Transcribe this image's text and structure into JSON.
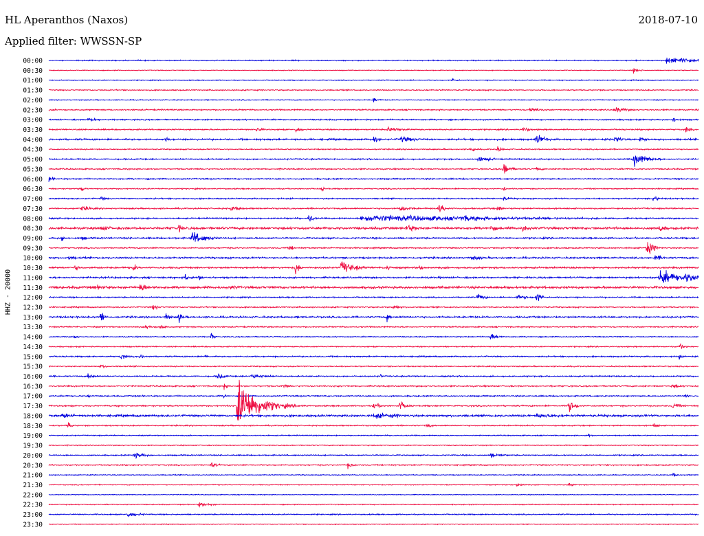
{
  "header": {
    "station": "HL Aperanthos (Naxos)",
    "date": "2018-07-10",
    "filter": "Applied filter: WWSSN-SP"
  },
  "chart_data": {
    "type": "line",
    "title": "HL Aperanthos (Naxos)",
    "subtitle": "Applied filter: WWSSN-SP",
    "ylabel": "HHZ - 20000",
    "xlabel": "",
    "grid": false,
    "colors": {
      "even": "#0000dd",
      "odd": "#ee1144"
    },
    "categories": [
      "00:00",
      "00:30",
      "01:00",
      "01:30",
      "02:00",
      "02:30",
      "03:00",
      "03:30",
      "04:00",
      "04:30",
      "05:00",
      "05:30",
      "06:00",
      "06:30",
      "07:00",
      "07:30",
      "08:00",
      "08:30",
      "09:00",
      "09:30",
      "10:00",
      "10:30",
      "11:00",
      "11:30",
      "12:00",
      "12:30",
      "13:00",
      "13:30",
      "14:00",
      "14:30",
      "15:00",
      "15:30",
      "16:00",
      "16:30",
      "17:00",
      "17:30",
      "18:00",
      "18:30",
      "19:00",
      "19:30",
      "20:00",
      "20:30",
      "21:00",
      "21:30",
      "22:00",
      "22:30",
      "23:00",
      "23:30"
    ],
    "series": [
      {
        "label": "00:00",
        "noise": 0.8,
        "events": [
          [
            0.95,
            3,
            0.08
          ]
        ]
      },
      {
        "label": "00:30",
        "noise": 0.6,
        "events": [
          [
            0.9,
            2.5,
            0.01
          ]
        ]
      },
      {
        "label": "01:00",
        "noise": 0.7,
        "events": [
          [
            0.62,
            2,
            0.01
          ]
        ]
      },
      {
        "label": "01:30",
        "noise": 0.9,
        "events": []
      },
      {
        "label": "02:00",
        "noise": 0.7,
        "events": [
          [
            0.5,
            3,
            0.006
          ]
        ]
      },
      {
        "label": "02:30",
        "noise": 1.0,
        "events": [
          [
            0.74,
            2.5,
            0.02
          ],
          [
            0.87,
            3,
            0.02
          ]
        ]
      },
      {
        "label": "03:00",
        "noise": 1.0,
        "events": [
          [
            0.06,
            2,
            0.02
          ],
          [
            0.96,
            3,
            0.01
          ]
        ]
      },
      {
        "label": "03:30",
        "noise": 1.0,
        "events": [
          [
            0.32,
            3,
            0.008
          ],
          [
            0.38,
            3,
            0.01
          ],
          [
            0.52,
            2.5,
            0.03
          ],
          [
            0.73,
            3,
            0.01
          ],
          [
            0.98,
            3,
            0.008
          ]
        ]
      },
      {
        "label": "04:00",
        "noise": 1.3,
        "events": [
          [
            0.18,
            2.5,
            0.008
          ],
          [
            0.5,
            4,
            0.008
          ],
          [
            0.54,
            3,
            0.03
          ],
          [
            0.75,
            6,
            0.012
          ],
          [
            0.87,
            4,
            0.012
          ],
          [
            0.91,
            3,
            0.01
          ]
        ]
      },
      {
        "label": "04:30",
        "noise": 0.9,
        "events": [
          [
            0.65,
            6,
            0.004
          ],
          [
            0.69,
            3,
            0.01
          ]
        ]
      },
      {
        "label": "05:00",
        "noise": 1.0,
        "events": [
          [
            0.66,
            3,
            0.02
          ],
          [
            0.9,
            7,
            0.02
          ]
        ]
      },
      {
        "label": "05:30",
        "noise": 1.0,
        "events": [
          [
            0.7,
            7,
            0.01
          ],
          [
            0.75,
            2.5,
            0.01
          ]
        ]
      },
      {
        "label": "06:00",
        "noise": 1.0,
        "events": [
          [
            0.0,
            3,
            0.008
          ]
        ]
      },
      {
        "label": "06:30",
        "noise": 0.9,
        "events": [
          [
            0.05,
            4,
            0.004
          ],
          [
            0.42,
            3,
            0.004
          ],
          [
            0.7,
            3,
            0.004
          ]
        ]
      },
      {
        "label": "07:00",
        "noise": 1.0,
        "events": [
          [
            0.08,
            2,
            0.01
          ],
          [
            0.7,
            2.5,
            0.01
          ],
          [
            0.93,
            3,
            0.01
          ]
        ]
      },
      {
        "label": "07:30",
        "noise": 1.1,
        "events": [
          [
            0.05,
            2.5,
            0.02
          ],
          [
            0.28,
            2.5,
            0.02
          ],
          [
            0.54,
            3,
            0.02
          ],
          [
            0.6,
            5,
            0.01
          ],
          [
            0.69,
            3,
            0.01
          ]
        ]
      },
      {
        "label": "08:00",
        "noise": 1.1,
        "events": [
          [
            0.4,
            6,
            0.006
          ],
          [
            0.48,
            3.5,
            0.25
          ],
          [
            0.64,
            3,
            0.05
          ]
        ]
      },
      {
        "label": "08:30",
        "noise": 1.8,
        "events": [
          [
            0.08,
            3,
            0.02
          ],
          [
            0.2,
            4,
            0.008
          ],
          [
            0.55,
            4,
            0.02
          ],
          [
            0.68,
            4,
            0.01
          ],
          [
            0.73,
            5,
            0.008
          ],
          [
            0.94,
            5,
            0.008
          ]
        ]
      },
      {
        "label": "09:00",
        "noise": 1.2,
        "events": [
          [
            0.02,
            5,
            0.004
          ],
          [
            0.05,
            2.5,
            0.01
          ],
          [
            0.22,
            7,
            0.02
          ]
        ]
      },
      {
        "label": "09:30",
        "noise": 1.0,
        "events": [
          [
            0.37,
            3,
            0.008
          ],
          [
            0.92,
            9,
            0.01
          ]
        ]
      },
      {
        "label": "10:00",
        "noise": 1.3,
        "events": [
          [
            0.03,
            2,
            0.02
          ],
          [
            0.65,
            2.5,
            0.02
          ],
          [
            0.93,
            3,
            0.02
          ]
        ]
      },
      {
        "label": "10:30",
        "noise": 1.3,
        "events": [
          [
            0.04,
            3.5,
            0.008
          ],
          [
            0.13,
            5,
            0.005
          ],
          [
            0.38,
            10,
            0.004
          ],
          [
            0.45,
            7,
            0.02
          ],
          [
            0.52,
            3,
            0.01
          ],
          [
            0.57,
            3,
            0.008
          ]
        ]
      },
      {
        "label": "11:00",
        "noise": 1.3,
        "events": [
          [
            0.21,
            4,
            0.008
          ],
          [
            0.23,
            3,
            0.008
          ],
          [
            0.94,
            8,
            0.03
          ],
          [
            0.98,
            5,
            0.03
          ]
        ]
      },
      {
        "label": "11:30",
        "noise": 1.8,
        "events": [
          [
            0.07,
            2.5,
            0.04
          ],
          [
            0.14,
            6,
            0.01
          ],
          [
            0.28,
            2.5,
            0.02
          ]
        ]
      },
      {
        "label": "12:00",
        "noise": 1.0,
        "events": [
          [
            0.66,
            4,
            0.01
          ],
          [
            0.75,
            6,
            0.008
          ],
          [
            0.72,
            2.5,
            0.02
          ]
        ]
      },
      {
        "label": "12:30",
        "noise": 1.0,
        "events": [
          [
            0.16,
            3,
            0.01
          ],
          [
            0.53,
            3,
            0.01
          ]
        ]
      },
      {
        "label": "13:00",
        "noise": 1.3,
        "events": [
          [
            0.08,
            7,
            0.006
          ],
          [
            0.18,
            5,
            0.006
          ],
          [
            0.2,
            6,
            0.006
          ],
          [
            0.52,
            6,
            0.004
          ]
        ]
      },
      {
        "label": "13:30",
        "noise": 1.0,
        "events": [
          [
            0.15,
            3,
            0.01
          ],
          [
            0.17,
            3,
            0.01
          ]
        ]
      },
      {
        "label": "14:00",
        "noise": 0.8,
        "events": [
          [
            0.04,
            3,
            0.004
          ],
          [
            0.25,
            4,
            0.004
          ],
          [
            0.68,
            4,
            0.01
          ]
        ]
      },
      {
        "label": "14:30",
        "noise": 0.9,
        "events": [
          [
            0.97,
            3,
            0.01
          ]
        ]
      },
      {
        "label": "15:00",
        "noise": 1.0,
        "events": [
          [
            0.11,
            3,
            0.01
          ],
          [
            0.14,
            2.5,
            0.01
          ],
          [
            0.24,
            3,
            0.004
          ],
          [
            0.97,
            3,
            0.004
          ]
        ]
      },
      {
        "label": "15:30",
        "noise": 0.9,
        "events": [
          [
            0.08,
            2.5,
            0.01
          ]
        ]
      },
      {
        "label": "16:00",
        "noise": 1.0,
        "events": [
          [
            0.06,
            3,
            0.01
          ],
          [
            0.26,
            4,
            0.01
          ],
          [
            0.31,
            2.5,
            0.03
          ],
          [
            0.51,
            2.5,
            0.004
          ]
        ]
      },
      {
        "label": "16:30",
        "noise": 1.1,
        "events": [
          [
            0.27,
            6,
            0.003
          ],
          [
            0.36,
            2.5,
            0.01
          ],
          [
            0.96,
            3,
            0.01
          ]
        ]
      },
      {
        "label": "17:00",
        "noise": 1.0,
        "events": [
          [
            0.06,
            3,
            0.004
          ],
          [
            0.27,
            3,
            0.004
          ],
          [
            0.98,
            3,
            0.004
          ]
        ]
      },
      {
        "label": "17:30",
        "noise": 1.1,
        "events": [
          [
            0.29,
            26,
            0.03
          ],
          [
            0.5,
            4,
            0.01
          ],
          [
            0.54,
            5,
            0.01
          ],
          [
            0.8,
            7,
            0.01
          ],
          [
            0.96,
            4,
            0.01
          ]
        ]
      },
      {
        "label": "18:00",
        "noise": 1.6,
        "events": [
          [
            0.02,
            3,
            0.02
          ],
          [
            0.5,
            3,
            0.05
          ],
          [
            0.75,
            2.5,
            0.05
          ]
        ]
      },
      {
        "label": "18:30",
        "noise": 0.9,
        "events": [
          [
            0.03,
            5,
            0.004
          ],
          [
            0.58,
            2.5,
            0.01
          ],
          [
            0.93,
            2.5,
            0.01
          ]
        ]
      },
      {
        "label": "19:00",
        "noise": 0.8,
        "events": [
          [
            0.83,
            3,
            0.004
          ]
        ]
      },
      {
        "label": "19:30",
        "noise": 0.7,
        "events": []
      },
      {
        "label": "20:00",
        "noise": 0.9,
        "events": [
          [
            0.13,
            3,
            0.02
          ],
          [
            0.68,
            2.5,
            0.02
          ]
        ]
      },
      {
        "label": "20:30",
        "noise": 0.9,
        "events": [
          [
            0.25,
            3,
            0.01
          ],
          [
            0.46,
            3,
            0.01
          ]
        ]
      },
      {
        "label": "21:00",
        "noise": 0.7,
        "events": [
          [
            0.96,
            2.5,
            0.006
          ]
        ]
      },
      {
        "label": "21:30",
        "noise": 0.7,
        "events": [
          [
            0.72,
            2.5,
            0.01
          ],
          [
            0.8,
            2,
            0.01
          ]
        ]
      },
      {
        "label": "22:00",
        "noise": 0.6,
        "events": []
      },
      {
        "label": "22:30",
        "noise": 0.7,
        "events": [
          [
            0.23,
            2.5,
            0.02
          ]
        ]
      },
      {
        "label": "23:00",
        "noise": 0.9,
        "events": [
          [
            0.12,
            3,
            0.02
          ]
        ]
      },
      {
        "label": "23:30",
        "noise": 0.6,
        "events": []
      }
    ]
  }
}
